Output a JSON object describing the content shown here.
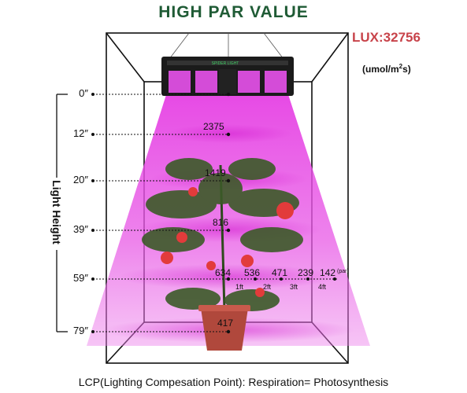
{
  "header": {
    "title": "HIGH PAR VALUE",
    "lux": "LUX:32756",
    "unit_prefix": "(umol/m",
    "unit_exp": "2",
    "unit_suffix": "s)"
  },
  "axis": {
    "label": "Light Height",
    "heights": [
      "0″",
      "12″",
      "20″",
      "39″",
      "59″",
      "79″"
    ]
  },
  "center_values": [
    "2375",
    "1419",
    "816",
    "634",
    "417"
  ],
  "row_59": {
    "values": [
      "536",
      "471",
      "239",
      "142"
    ],
    "par_tag": "(par)",
    "distances": [
      "1ft",
      "2ft",
      "3ft",
      "4ft"
    ]
  },
  "lamp_brand": "SPIDER LIGHT",
  "footer": "LCP(Lighting Compesation Point): Respiration= Photosynthesis",
  "colors": {
    "title": "#1f5b35",
    "lux": "#c8434a",
    "beam": "#e246e0"
  }
}
